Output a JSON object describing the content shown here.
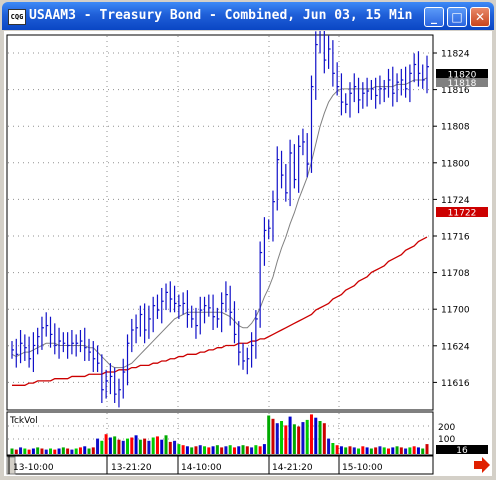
{
  "window": {
    "icon_text": "CQG",
    "title": "USAAM3 - Treasury Bond - Combined, Jun 03, 15 Min",
    "buttons": {
      "minimize": "_",
      "maximize": "□",
      "close": "✕"
    }
  },
  "chart": {
    "price_labels": [
      "11824",
      "11816",
      "11808",
      "11800",
      "11724",
      "11716",
      "11708",
      "11700",
      "11624",
      "11616"
    ],
    "current_price_box": "11820",
    "ma_price_box": "11818",
    "red_price_box": "11722",
    "volume_label": "TckVol",
    "volume_ticks": [
      "200",
      "100"
    ],
    "volume_value_box": "16",
    "time_labels": [
      "13-10:00",
      "13-21:20",
      "14-10:00",
      "14-21:20",
      "15-10:00"
    ],
    "colors": {
      "bars": "#1010c8",
      "ma_gray": "#808080",
      "ma_red": "#cc0000",
      "grid": "#909090",
      "arrow": "#e02000"
    }
  },
  "chart_data": {
    "type": "ohlc",
    "symbol": "USAAM3",
    "price_ticks": [
      "11824",
      "11816",
      "11808",
      "11800",
      "11724",
      "11716",
      "11708",
      "11700",
      "11624",
      "11616"
    ],
    "time_ticks": [
      "13-10:00",
      "13-21:20",
      "14-10:00",
      "14-21:20",
      "15-10:00"
    ],
    "volume_ticks": [
      "200",
      "100"
    ],
    "last_price": "11820",
    "price_series": [
      324,
      322,
      327,
      325,
      320,
      326,
      330,
      334,
      335,
      331,
      326,
      328,
      327,
      326,
      327,
      327,
      328,
      325,
      323,
      320,
      318,
      306,
      310,
      312,
      304,
      306,
      314,
      327,
      333,
      334,
      340,
      333,
      338,
      344,
      342,
      346,
      350,
      347,
      345,
      344,
      345,
      340,
      338,
      335,
      342,
      344,
      343,
      339,
      338,
      345,
      349,
      341,
      331,
      323,
      319,
      320,
      326,
      338,
      368,
      378,
      379,
      391,
      410,
      403,
      395,
      413,
      401,
      416,
      418,
      408,
      443,
      462,
      472,
      455,
      460,
      449,
      443,
      436,
      435,
      440,
      443,
      437,
      440,
      441,
      442,
      439,
      442,
      442,
      446,
      440,
      445,
      446,
      442,
      449,
      453,
      449,
      446,
      452
    ],
    "gray_ma": [
      322,
      321,
      322,
      323,
      323,
      324,
      325,
      326,
      327,
      327,
      327,
      326,
      326,
      326,
      326,
      326,
      326,
      326,
      325,
      325,
      323,
      321,
      319,
      317,
      316,
      316,
      316,
      317,
      318,
      320,
      322,
      324,
      326,
      328,
      330,
      332,
      334,
      336,
      338,
      339,
      340,
      341,
      341,
      341,
      341,
      341,
      341,
      341,
      341,
      341,
      340,
      339,
      337,
      335,
      334,
      334,
      336,
      339,
      343,
      348,
      352,
      357,
      364,
      370,
      375,
      381,
      386,
      392,
      397,
      402,
      409,
      417,
      425,
      431,
      436,
      439,
      441,
      442,
      442,
      442,
      442,
      442,
      442,
      442,
      442,
      443,
      443,
      443,
      443,
      443,
      444,
      444,
      444,
      445,
      446,
      446,
      446,
      447
    ],
    "red_ma": [
      308,
      308,
      308,
      308,
      309,
      309,
      310,
      310,
      310,
      310,
      311,
      311,
      311,
      311,
      312,
      312,
      312,
      312,
      313,
      313,
      313,
      313,
      314,
      314,
      314,
      315,
      315,
      315,
      316,
      316,
      317,
      317,
      317,
      318,
      318,
      319,
      319,
      320,
      320,
      321,
      321,
      322,
      322,
      322,
      323,
      323,
      324,
      324,
      325,
      325,
      326,
      326,
      326,
      327,
      327,
      327,
      328,
      328,
      329,
      329,
      330,
      331,
      332,
      333,
      334,
      335,
      336,
      337,
      338,
      339,
      340,
      342,
      343,
      344,
      345,
      347,
      348,
      349,
      351,
      352,
      353,
      355,
      356,
      357,
      359,
      360,
      361,
      362,
      364,
      365,
      366,
      367,
      369,
      370,
      371,
      373,
      374,
      375
    ],
    "volume": [
      5,
      4,
      6,
      5,
      4,
      5,
      6,
      5,
      4,
      5,
      4,
      5,
      6,
      5,
      4,
      5,
      6,
      7,
      5,
      6,
      14,
      12,
      18,
      15,
      16,
      13,
      12,
      14,
      15,
      17,
      13,
      14,
      12,
      15,
      16,
      13,
      17,
      11,
      12,
      9,
      8,
      7,
      6,
      7,
      8,
      7,
      6,
      7,
      8,
      6,
      7,
      8,
      6,
      7,
      8,
      7,
      6,
      8,
      7,
      9,
      35,
      32,
      28,
      30,
      26,
      34,
      27,
      25,
      29,
      31,
      36,
      33,
      30,
      28,
      14,
      10,
      8,
      7,
      6,
      7,
      6,
      5,
      7,
      6,
      5,
      6,
      7,
      6,
      5,
      6,
      7,
      6,
      5,
      6,
      7,
      6,
      5,
      9
    ]
  }
}
